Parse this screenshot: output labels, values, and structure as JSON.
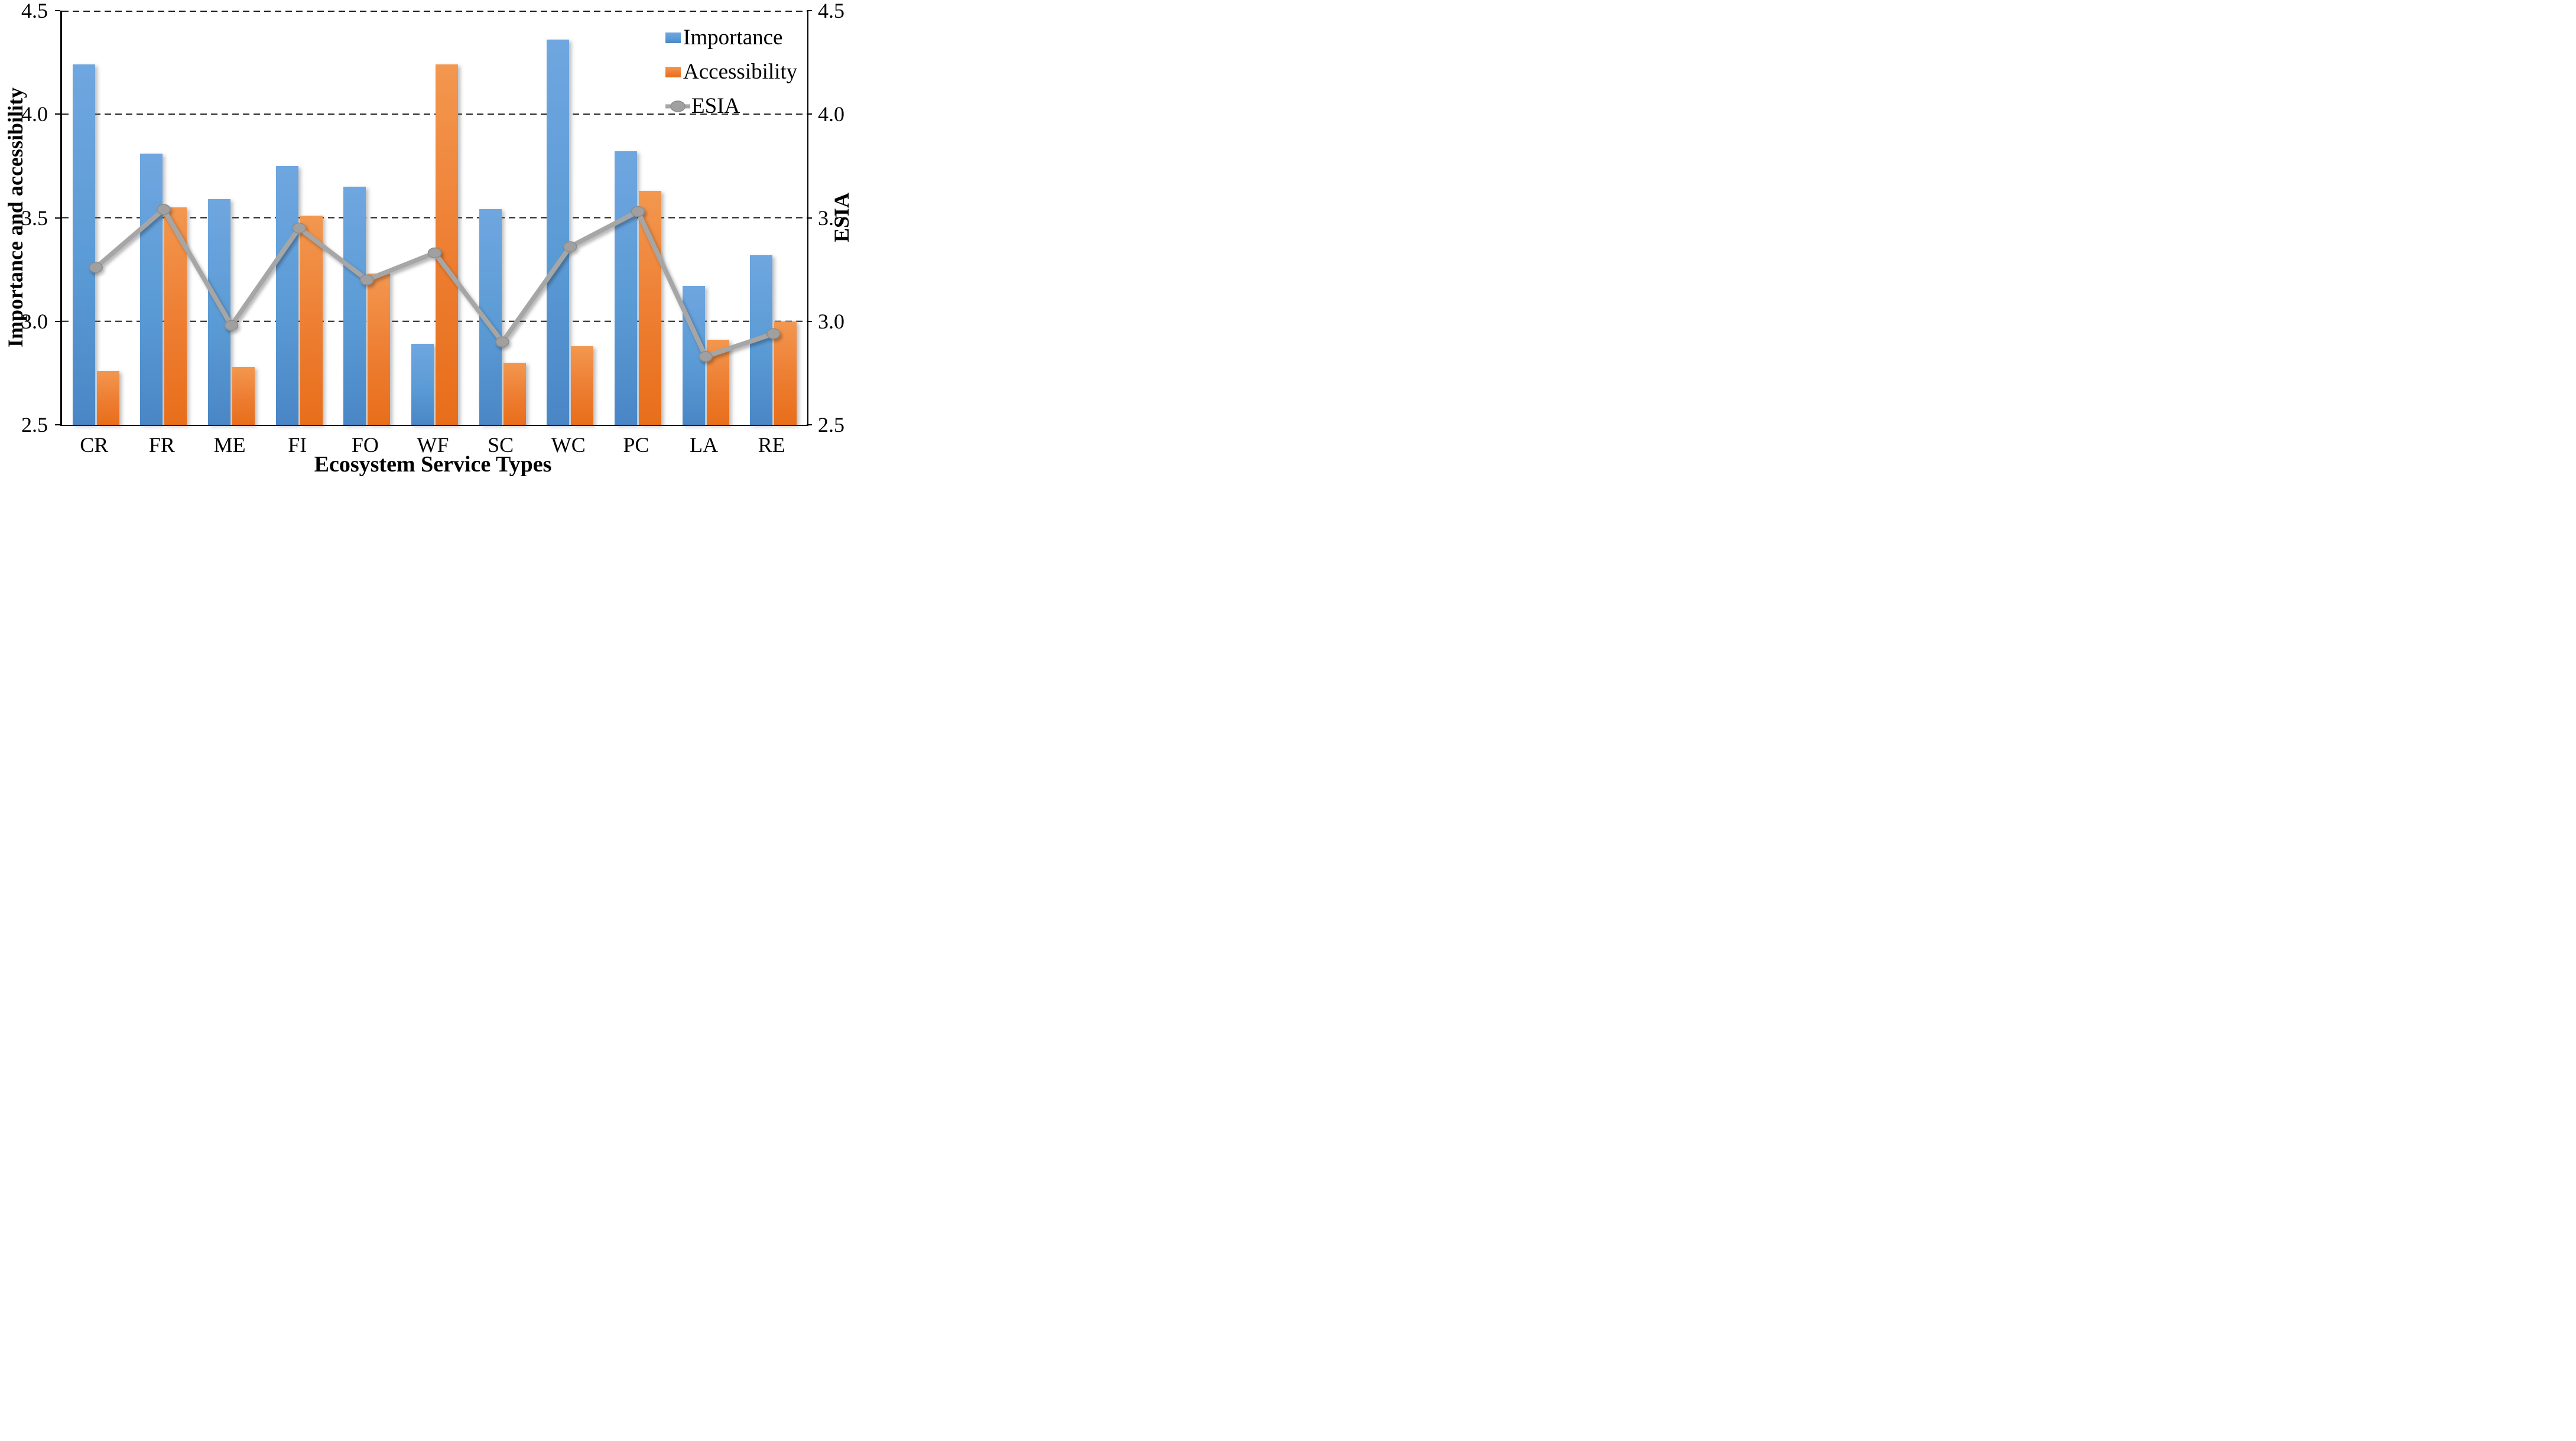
{
  "chart_data": {
    "type": "bar",
    "subtype": "grouped-bars-with-line-overlay",
    "title": "",
    "categories": [
      "CR",
      "FR",
      "ME",
      "FI",
      "FO",
      "WF",
      "SC",
      "WC",
      "PC",
      "LA",
      "RE"
    ],
    "series": [
      {
        "name": "Importance",
        "type": "bar",
        "axis": "left",
        "color": "#5b9bd5",
        "gradient_top": "#6fa6e0",
        "gradient_bottom": "#4a86c6",
        "values": [
          4.24,
          3.81,
          3.59,
          3.75,
          3.65,
          2.89,
          3.54,
          4.36,
          3.82,
          3.17,
          3.32
        ]
      },
      {
        "name": "Accessibility",
        "type": "bar",
        "axis": "left",
        "color": "#ed7d31",
        "gradient_top": "#f3974f",
        "gradient_bottom": "#e86e1a",
        "values": [
          2.76,
          3.55,
          2.78,
          3.51,
          3.23,
          4.24,
          2.8,
          2.88,
          3.63,
          2.91,
          3.0
        ]
      },
      {
        "name": "ESIA",
        "type": "line",
        "axis": "right",
        "color": "#a6a6a6",
        "marker_color": "#a0a0a0",
        "marker_stroke": "#8c8c8c",
        "values": [
          3.26,
          3.54,
          2.98,
          3.45,
          3.2,
          3.33,
          2.9,
          3.36,
          3.53,
          2.83,
          2.94
        ]
      }
    ],
    "xlabel": "Ecosystem Service Types",
    "ylabel_left": "Importance and accessibility",
    "ylabel_right": "ESIA",
    "ylim": [
      2.5,
      4.5
    ],
    "yticks": [
      2.5,
      3.0,
      3.5,
      4.0,
      4.5
    ],
    "ytick_format_decimals": 1,
    "grid": "horizontal-dashed",
    "gridline_color": "#1a1a1a",
    "axis_line_color": "#000000",
    "background": "#ffffff",
    "legend_position": "top-right-inside"
  }
}
